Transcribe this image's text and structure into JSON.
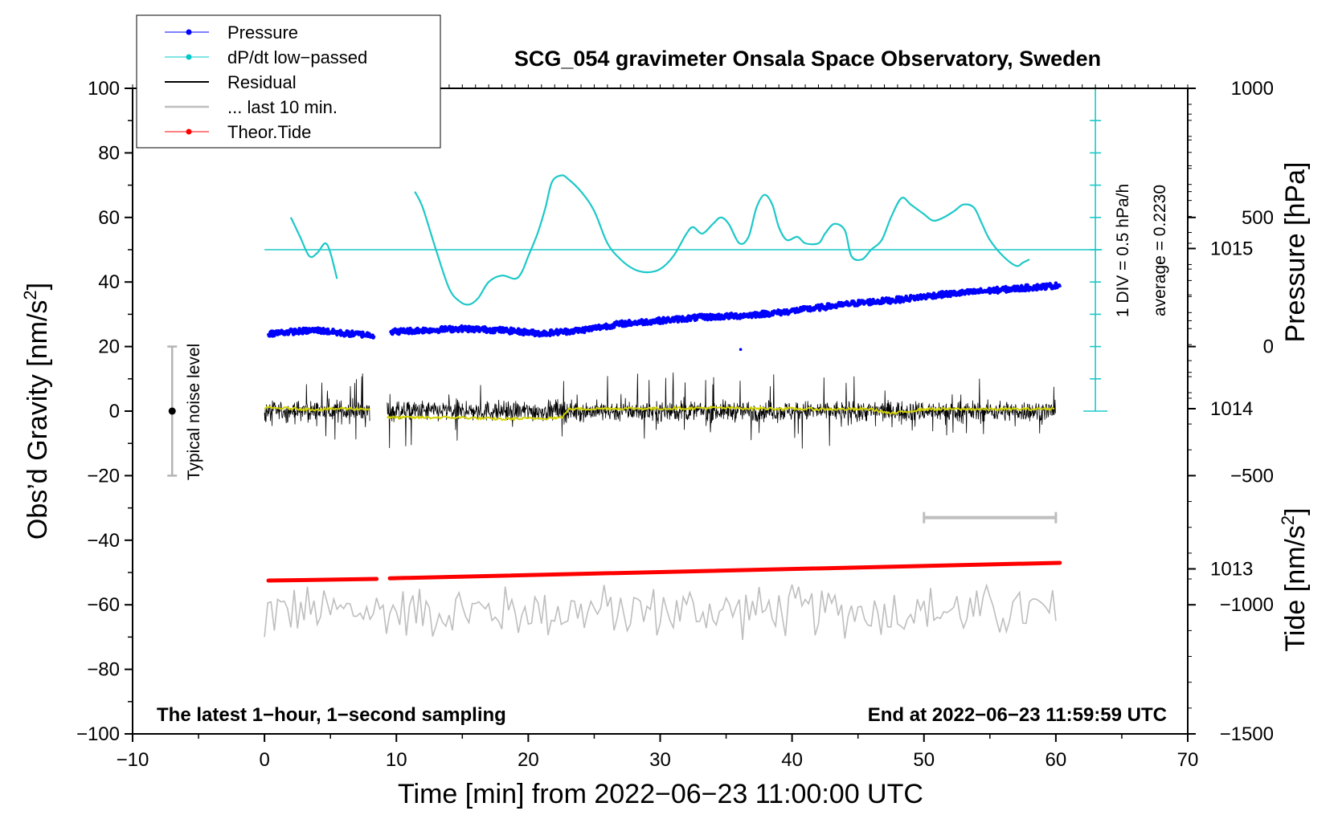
{
  "chart_data": {
    "type": "line",
    "title": "SCG_054 gravimeter Onsala Space Observatory, Sweden",
    "xlabel": "Time [min] from 2022−06−23 11:00:00 UTC",
    "ylabel_main": "Obs’d Gravity [nm/s",
    "ylabel_sup": "2",
    "ylabel_close": "]",
    "ylabel_pressure": "Pressure [hPa]",
    "ylabel_tide": "Tide [nm/s",
    "ylabel_tide_sup": "2",
    "ylabel_tide_close": "]",
    "xlim": [
      -10,
      70
    ],
    "ylim": [
      -100,
      100
    ],
    "x_ticks": [
      "−10",
      "0",
      "10",
      "20",
      "30",
      "40",
      "50",
      "60",
      "70"
    ],
    "y_ticks": [
      "−100",
      "−80",
      "−60",
      "−40",
      "−20",
      "0",
      "20",
      "40",
      "60",
      "80",
      "100"
    ],
    "pressure_ticks": [
      "1013",
      "1014",
      "1015"
    ],
    "pressure_tick_values": [
      1013,
      1014,
      1015
    ],
    "pressure_range": [
      1011.97,
      1016.0
    ],
    "tide_ticks": [
      "−1500",
      "−1000",
      "−500",
      "0",
      "500",
      "1000"
    ],
    "tide_tick_values": [
      -1500,
      -1000,
      -500,
      0,
      500,
      1000
    ],
    "tide_range": [
      -1500,
      1000
    ],
    "legend": [
      {
        "label": "Pressure",
        "color": "#0000ff",
        "marker": true
      },
      {
        "label": "dP/dt low−passed",
        "color": "#00c8c8",
        "marker": true
      },
      {
        "label": "Residual",
        "color": "#000000",
        "marker": false
      },
      {
        "label": "... last 10 min.",
        "color": "#bebebe",
        "marker": false
      },
      {
        "label": "Theor.Tide",
        "color": "#ff0000",
        "marker": true
      }
    ],
    "annotations": {
      "bottom_left": "The latest 1−hour, 1−second sampling",
      "bottom_right": "End at 2022−06−23 11:59:59 UTC",
      "noise": "Typical noise level",
      "dpdt_scale": "1 DIV = 0.5 hPa/h",
      "dpdt_average": "average = 0.2230"
    },
    "colors": {
      "pressure": "#0000ff",
      "dpdt": "#1ec8c8",
      "residual": "#000000",
      "residual_smooth": "#d2d200",
      "last10": "#bebebe",
      "tide": "#ff0000",
      "noise_bar": "#b4b4b4",
      "scale_bar": "#bebebe"
    },
    "series": {
      "pressure": {
        "unit": "hPa",
        "segments": [
          {
            "x": [
              0.3,
              2,
              4,
              6,
              8.3
            ],
            "y": [
              1014.47,
              1014.48,
              1014.49,
              1014.47,
              1014.46
            ]
          },
          {
            "x": [
              9.5,
              12,
              15,
              18,
              21,
              24,
              27,
              30,
              33,
              36,
              39,
              42,
              45,
              48,
              51,
              54,
              57,
              60.3
            ],
            "y": [
              1014.48,
              1014.49,
              1014.5,
              1014.49,
              1014.47,
              1014.49,
              1014.53,
              1014.55,
              1014.57,
              1014.58,
              1014.6,
              1014.63,
              1014.66,
              1014.68,
              1014.71,
              1014.73,
              1014.75,
              1014.77
            ]
          }
        ]
      },
      "dpdt": {
        "unit": "gravity-axis units",
        "segments": [
          {
            "x": [
              2.0,
              2.7,
              3.4,
              4.0,
              4.6,
              5.0,
              5.5
            ],
            "y": [
              60,
              54,
              48,
              49,
              52,
              49,
              41
            ]
          },
          {
            "x": [
              11.4,
              12,
              13,
              14,
              14.8,
              15.5,
              16.2,
              17,
              18,
              19,
              19.5,
              20,
              20.7,
              21.3,
              21.8,
              22.5,
              23,
              24,
              25,
              26,
              27,
              28,
              29,
              30,
              31,
              32,
              32.5,
              33.2,
              34,
              34.6,
              35.2,
              36,
              36.7,
              37.3,
              37.9,
              38.5,
              39,
              39.6,
              40.4,
              41,
              42,
              42.5,
              43.2,
              44,
              44.5,
              45.3,
              46,
              46.8,
              47.5,
              48.3,
              49,
              50,
              50.7,
              51.5,
              52.3,
              53,
              53.8,
              54.4,
              55,
              56,
              57,
              57.5,
              58
            ],
            "y": [
              68,
              63,
              50,
              38,
              34,
              33,
              35,
              40,
              42,
              41,
              43,
              48,
              55,
              63,
              71,
              73,
              72,
              68,
              62,
              52,
              47,
              44,
              43,
              44,
              48,
              55,
              57,
              55,
              58,
              60,
              58,
              52,
              54,
              63,
              67,
              64,
              57,
              53,
              54,
              52,
              52,
              55,
              58,
              56,
              48,
              47,
              50,
              53,
              60,
              66,
              64,
              61,
              59,
              60,
              62,
              64,
              63,
              58,
              53,
              48,
              45,
              46,
              47
            ]
          }
        ]
      },
      "residual_smooth": {
        "x": [
          0,
          2,
          4,
          6,
          8,
          9.3,
          12,
          15,
          18,
          21,
          22.6,
          23,
          26,
          30,
          34,
          38,
          42,
          46,
          47.5,
          50,
          54,
          58,
          60
        ],
        "y": [
          1.0,
          0.8,
          0.5,
          0.8,
          0.6,
          -2.0,
          -2.0,
          -2.0,
          -2.5,
          -2.2,
          -2.0,
          0.6,
          0.8,
          0.8,
          1.0,
          0.8,
          0.6,
          0.6,
          -0.8,
          0.6,
          0.6,
          0.6,
          0.8
        ]
      },
      "residual": {
        "segments": [
          [
            0,
            8
          ],
          [
            9.3,
            60
          ]
        ],
        "envelope": 10
      },
      "last10": {
        "x_range": [
          0,
          60
        ],
        "center": -62,
        "amplitude": 7,
        "start": -70,
        "end": -65
      },
      "tide": {
        "unit": "nm/s2",
        "segments": [
          {
            "x": [
              0.3,
              8.5
            ],
            "y": [
              -52.5,
              -52.0
            ]
          },
          {
            "x": [
              9.5,
              60.3
            ],
            "y": [
              -51.8,
              -47.0
            ]
          }
        ]
      },
      "noise_level": {
        "x": -7,
        "y_center": 0,
        "y_low": -20,
        "y_high": 20
      },
      "tide_scale_bar": {
        "x_start": 50,
        "x_end": 60,
        "y": -33
      }
    }
  }
}
